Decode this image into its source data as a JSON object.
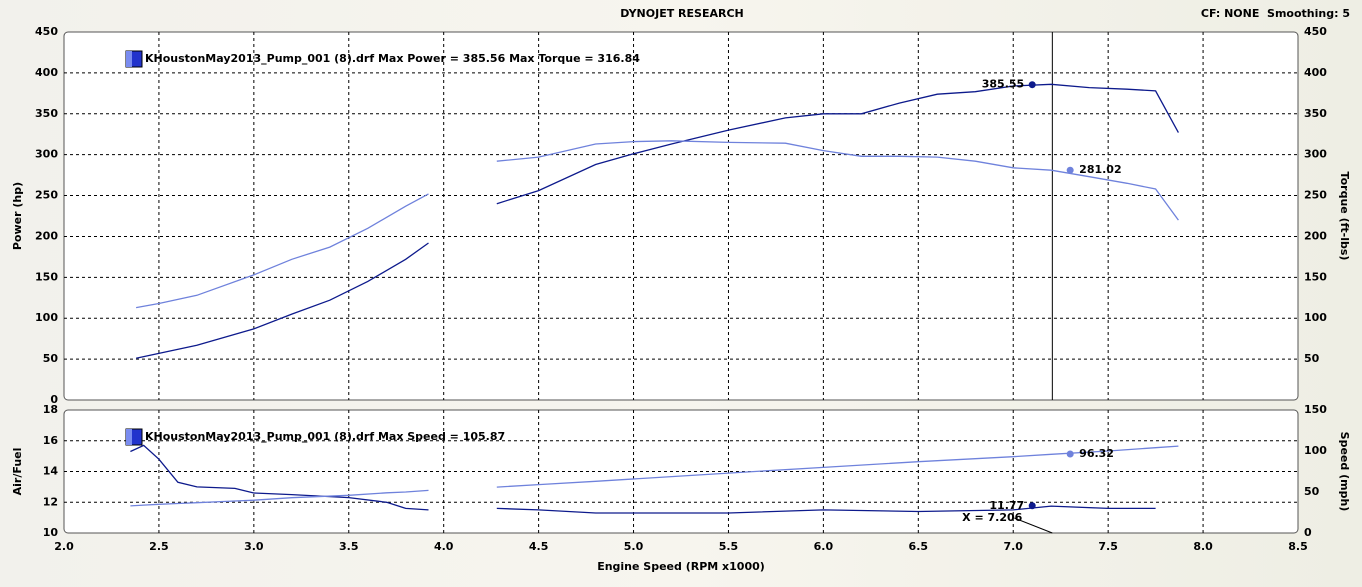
{
  "header": {
    "title": "DYNOJET RESEARCH",
    "settings": "CF: NONE  Smoothing: 5"
  },
  "cursor": {
    "value": 7.206,
    "label": "X = 7.206"
  },
  "chart_data": [
    {
      "type": "line",
      "legend": "KHoustonMay2013_Pump_001 (8).drf Max Power = 385.56 Max Torque = 316.84",
      "ylabel": "Power (hp)",
      "y2label": "Torque (ft-lbs)",
      "x": [
        2.38,
        2.5,
        2.7,
        3.0,
        3.2,
        3.4,
        3.6,
        3.8,
        3.92,
        4.1,
        4.28,
        4.5,
        4.8,
        5.0,
        5.2,
        5.5,
        5.8,
        6.0,
        6.2,
        6.4,
        6.6,
        6.8,
        7.0,
        7.2,
        7.4,
        7.6,
        7.75,
        7.87
      ],
      "series": [
        {
          "color": "#0d1a8c",
          "values": [
            51,
            57,
            67,
            87,
            105,
            122,
            145,
            172,
            192,
            null,
            240,
            256,
            288,
            301,
            313,
            330,
            345,
            350,
            350,
            363,
            374,
            377,
            384,
            386,
            382,
            380,
            378,
            327
          ]
        },
        {
          "color": "#6f82dc",
          "axis": "y2",
          "values": [
            113,
            118,
            128,
            153,
            172,
            187,
            210,
            237,
            252,
            null,
            292,
            297,
            313,
            316,
            317,
            315,
            314,
            305,
            298,
            298,
            297,
            292,
            284,
            281,
            273,
            265,
            258,
            220
          ]
        }
      ],
      "markers": [
        {
          "x": 7.1,
          "y": 385.55,
          "color": "#0d1a8c"
        },
        {
          "x": 7.3,
          "y": 281.02,
          "color": "#6f82dc"
        }
      ],
      "xlim": [
        2,
        8.5
      ],
      "xticks": [
        2,
        2.5,
        3,
        3.5,
        4,
        4.5,
        5,
        5.5,
        6,
        6.5,
        7,
        7.5,
        8,
        8.5
      ],
      "ylim": [
        0,
        450
      ],
      "yticks": [
        0,
        50,
        100,
        150,
        200,
        250,
        300,
        350,
        400,
        450
      ],
      "y2lim": [
        0,
        450
      ],
      "y2ticks": [
        50,
        100,
        150,
        200,
        250,
        300,
        350,
        400,
        450
      ],
      "grid": true
    },
    {
      "type": "line",
      "legend": "KHoustonMay2013_Pump_001 (8).drf Max Speed = 105.87",
      "ylabel": "Air/Fuel",
      "y2label": "Speed (mph)",
      "xlabel": "Engine Speed (RPM x1000)",
      "x": [
        2.35,
        2.42,
        2.5,
        2.6,
        2.7,
        2.9,
        3.0,
        3.2,
        3.5,
        3.7,
        3.8,
        3.92,
        4.1,
        4.28,
        4.5,
        4.8,
        5.5,
        6.0,
        6.5,
        7.0,
        7.2,
        7.5,
        7.75,
        7.87
      ],
      "series": [
        {
          "color": "#0d1a8c",
          "values": [
            15.3,
            15.7,
            14.8,
            13.3,
            13.0,
            12.9,
            12.6,
            12.5,
            12.3,
            12.0,
            11.6,
            11.5,
            null,
            11.6,
            11.5,
            11.3,
            11.3,
            11.5,
            11.4,
            11.5,
            11.75,
            11.6,
            11.6,
            null
          ]
        },
        {
          "color": "#6f82dc",
          "axis": "y2",
          "values": [
            33,
            34,
            35,
            36,
            37,
            39,
            40,
            43,
            46,
            49,
            50,
            52,
            null,
            56,
            59,
            63,
            73,
            80,
            87,
            93,
            96,
            100,
            104,
            106
          ]
        }
      ],
      "markers": [
        {
          "x": 7.1,
          "y": 11.77,
          "color": "#0d1a8c"
        },
        {
          "x": 7.3,
          "y": 96.32,
          "color": "#6f82dc",
          "axis": "y2"
        }
      ],
      "xlim": [
        2,
        8.5
      ],
      "xticks": [
        {
          "value": 2,
          "label": "2.0"
        },
        {
          "value": 2.5,
          "label": "2.5"
        },
        {
          "value": 3,
          "label": "3.0"
        },
        {
          "value": 3.5,
          "label": "3.5"
        },
        {
          "value": 4,
          "label": "4.0"
        },
        {
          "value": 4.5,
          "label": "4.5"
        },
        {
          "value": 5,
          "label": "5.0"
        },
        {
          "value": 5.5,
          "label": "5.5"
        },
        {
          "value": 6,
          "label": "6.0"
        },
        {
          "value": 6.5,
          "label": "6.5"
        },
        {
          "value": 7,
          "label": "7.0"
        },
        {
          "value": 7.5,
          "label": "7.5"
        },
        {
          "value": 8,
          "label": "8.0"
        },
        {
          "value": 8.5,
          "label": "8.5"
        }
      ],
      "ylim": [
        10,
        18
      ],
      "yticks": [
        10,
        12,
        14,
        16,
        18
      ],
      "y2lim": [
        0,
        150
      ],
      "y2ticks": [
        0,
        50,
        100,
        150
      ],
      "grid": true
    }
  ]
}
